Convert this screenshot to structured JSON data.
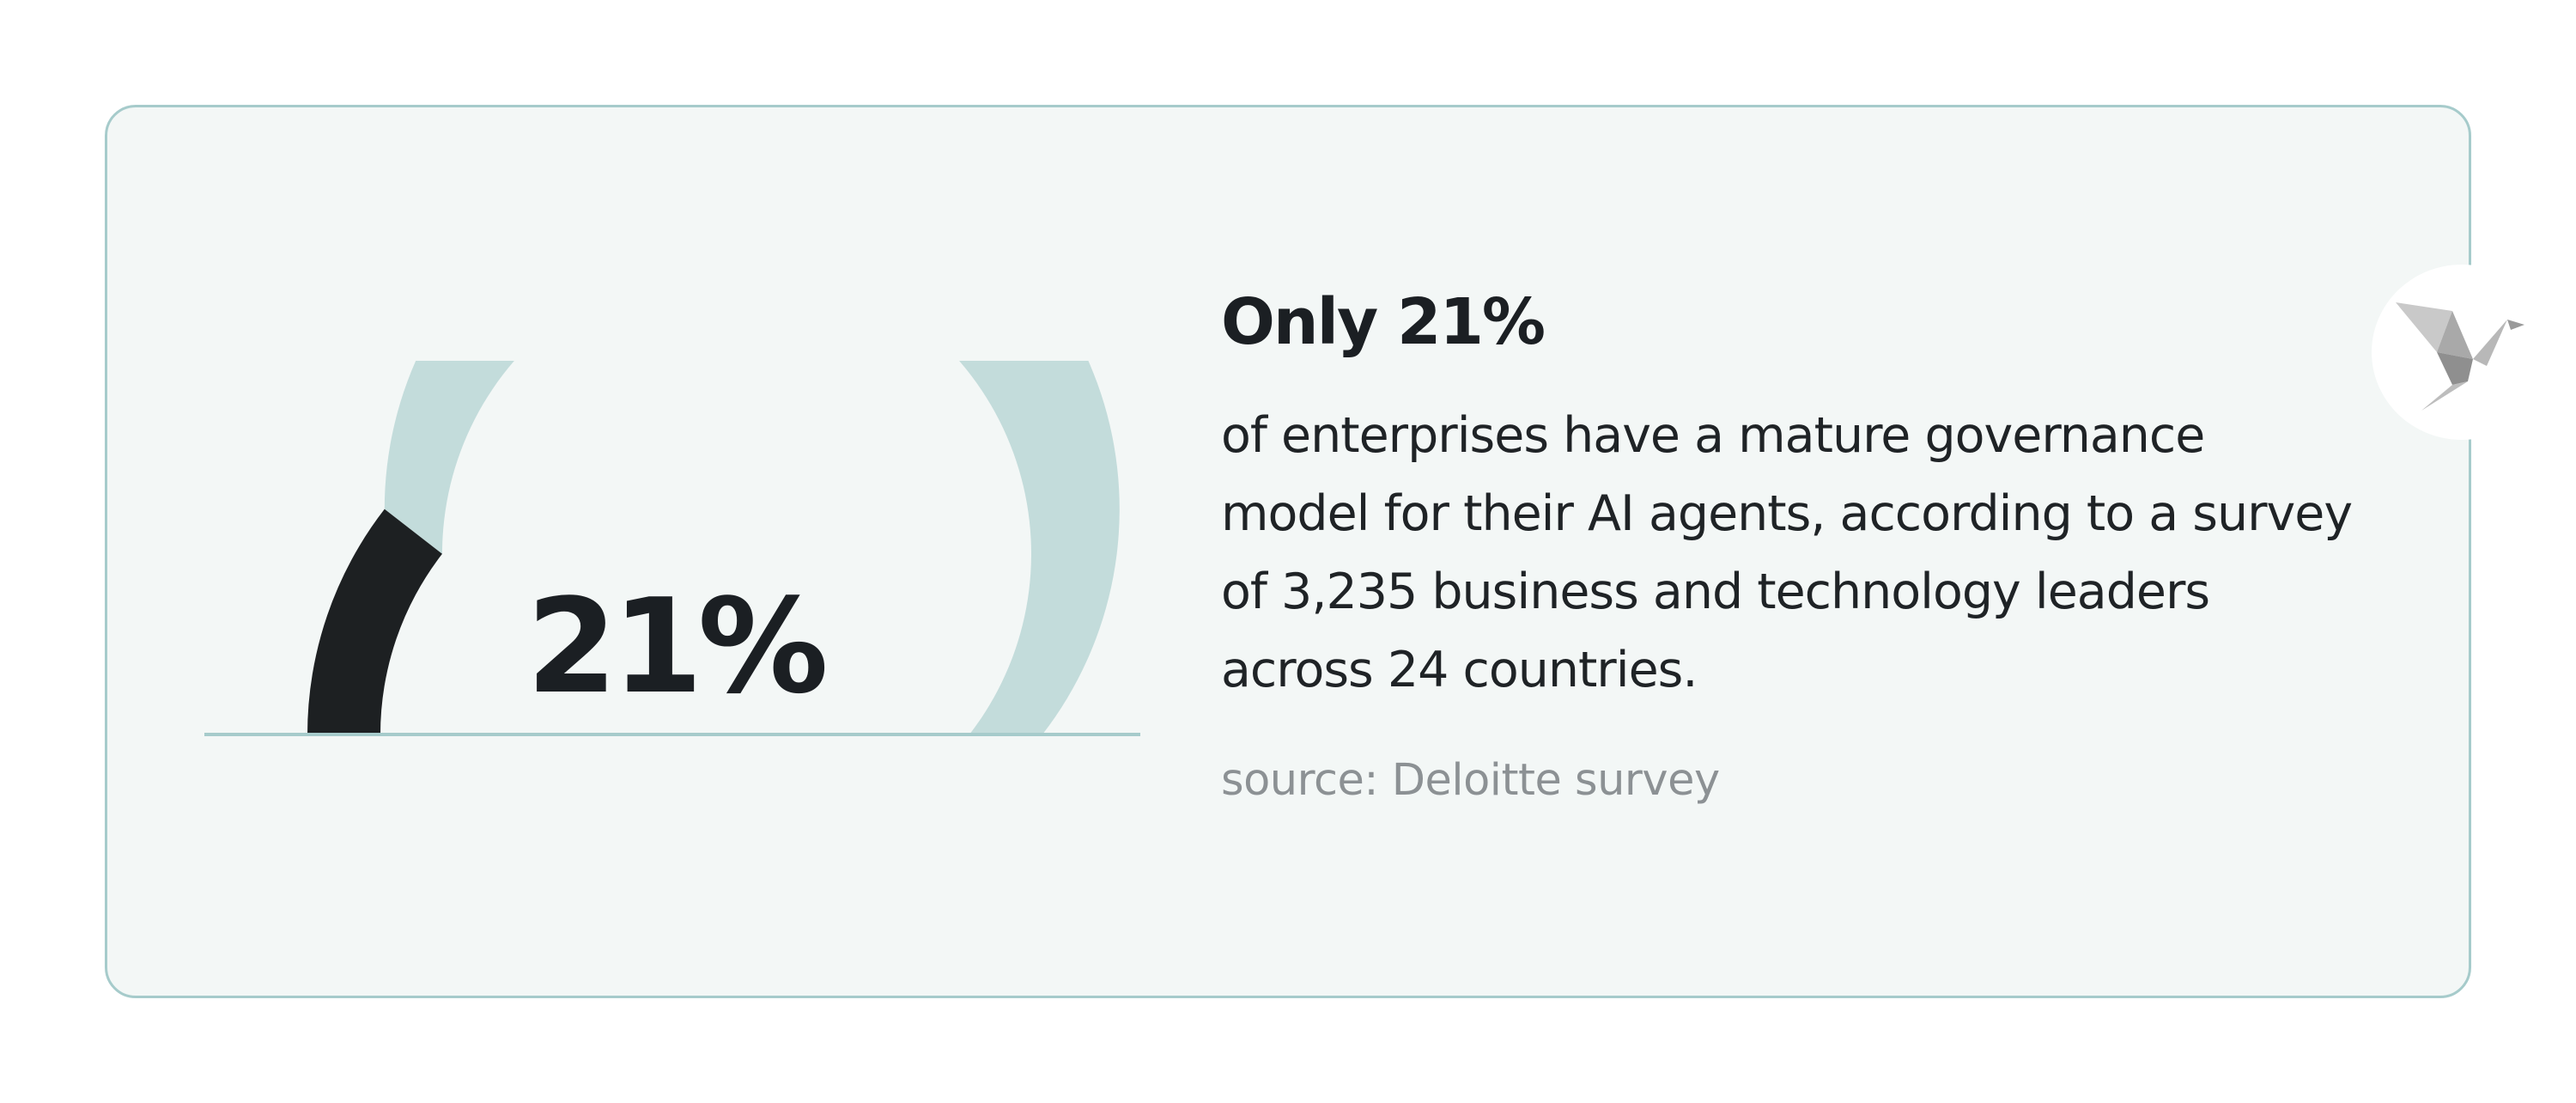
{
  "chart_data": {
    "type": "gauge",
    "value": 21,
    "max": 100,
    "label": "21%",
    "colors": {
      "filled": "#1d2022",
      "remaining": "#c3dcdb",
      "baseline": "#a6cbcb"
    }
  },
  "text": {
    "heading": "Only 21%",
    "body": "of enterprises have a mature governance model for their AI agents, according to a survey of 3,235 business and technology leaders across 24 countries.",
    "source": "source: Deloitte survey"
  },
  "logo": {
    "icon": "origami-bird-icon"
  },
  "colors": {
    "card_background": "#f3f7f6",
    "card_border": "#a6cbcb",
    "text_dark": "#1b1f23",
    "text_muted": "#8c9194"
  }
}
